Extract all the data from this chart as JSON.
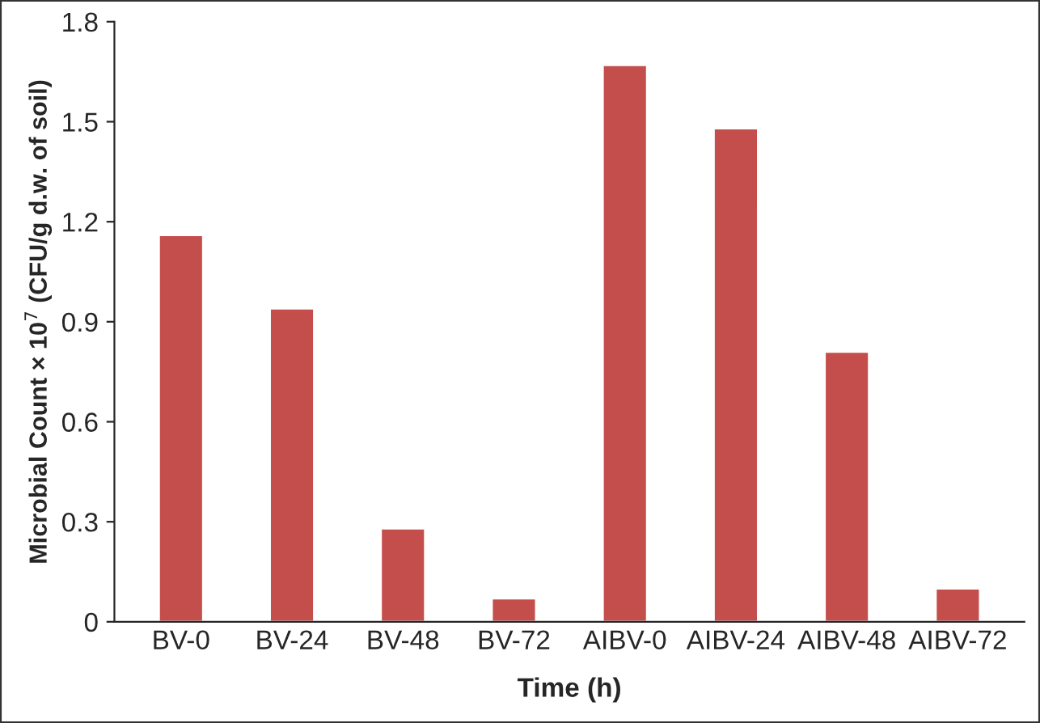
{
  "chart_data": {
    "type": "bar",
    "xlabel": "Time (h)",
    "ylabel": "Microbial Count × 10$^{7}$ (CFU/g d.w. of soil)",
    "categories": [
      "BV-0",
      "BV-24",
      "BV-48",
      "BV-72",
      "AIBV-0",
      "AIBV-24",
      "AIBV-48",
      "AIBV-72"
    ],
    "values": [
      1.16,
      0.94,
      0.28,
      0.07,
      1.67,
      1.48,
      0.81,
      0.1
    ],
    "color": "#c44e4c",
    "ylim": [
      0,
      1.8
    ],
    "yticks": [
      0,
      0.3,
      0.6,
      0.9,
      1.2,
      1.5,
      1.8
    ],
    "grid": false
  }
}
